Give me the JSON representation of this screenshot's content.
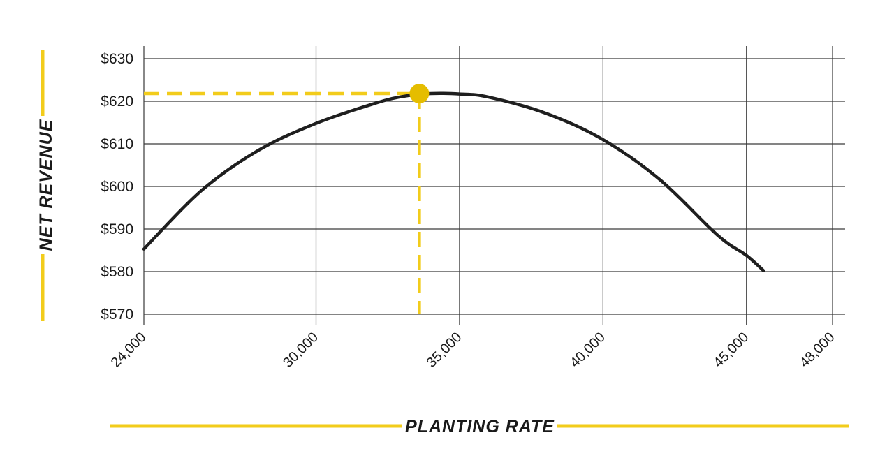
{
  "colors": {
    "accent": "#f2cc1b",
    "marker": "#e5bd00",
    "curve": "#1f1f1f",
    "grid": "#3a3a3a"
  },
  "chart_data": {
    "type": "line",
    "xlabel": "PLANTING RATE",
    "ylabel": "NET REVENUE",
    "xlim": [
      24000,
      48000
    ],
    "ylim": [
      570,
      630
    ],
    "x_ticks": [
      24000,
      30000,
      35000,
      40000,
      45000,
      48000
    ],
    "x_tick_labels": [
      "24,000",
      "30,000",
      "35,000",
      "40,000",
      "45,000",
      "48,000"
    ],
    "y_ticks": [
      570,
      580,
      590,
      600,
      610,
      620,
      630
    ],
    "y_tick_labels": [
      "$570",
      "$580",
      "$590",
      "$600",
      "$610",
      "$620",
      "$630"
    ],
    "grid": true,
    "series": [
      {
        "x": [
          24000,
          26000,
          28000,
          30000,
          32000,
          33000,
          34000,
          35000,
          36000,
          38000,
          40000,
          42000,
          44000,
          45000,
          45600
        ],
        "y": [
          585.3,
          599.0,
          608.5,
          614.8,
          619.4,
          621.1,
          621.8,
          621.7,
          621.0,
          617.2,
          611.0,
          601.5,
          588.5,
          583.8,
          580.2
        ]
      }
    ],
    "optimum": {
      "x": 33600,
      "y": 621.8
    }
  }
}
